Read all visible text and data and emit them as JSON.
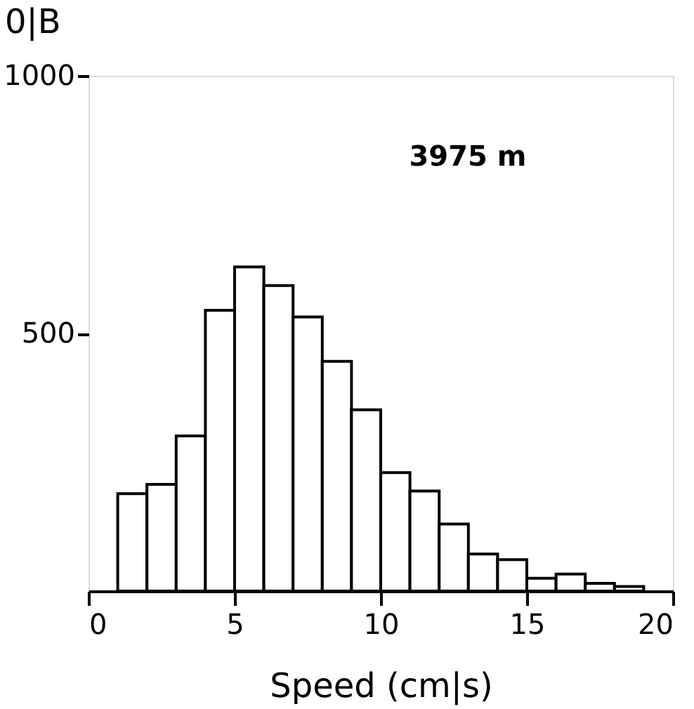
{
  "chart_data": {
    "type": "histogram",
    "ylabel": "0|B",
    "xlabel": "Speed (cm|s)",
    "annotations": [
      "3975 m"
    ],
    "bins": [
      1,
      2,
      3,
      4,
      5,
      6,
      7,
      8,
      9,
      10,
      11,
      12,
      13,
      14,
      15,
      16,
      17,
      18,
      19
    ],
    "values": [
      189,
      207,
      301,
      545,
      629,
      593,
      532,
      446,
      352,
      230,
      194,
      130,
      72,
      61,
      25,
      33,
      15,
      9
    ],
    "color": "#ffffff",
    "xlim": [
      0,
      20
    ],
    "xticks": [
      0,
      5,
      10,
      15,
      20
    ],
    "ylim": [
      0,
      1000
    ],
    "yticks": [
      500,
      1000
    ],
    "grid": false
  }
}
